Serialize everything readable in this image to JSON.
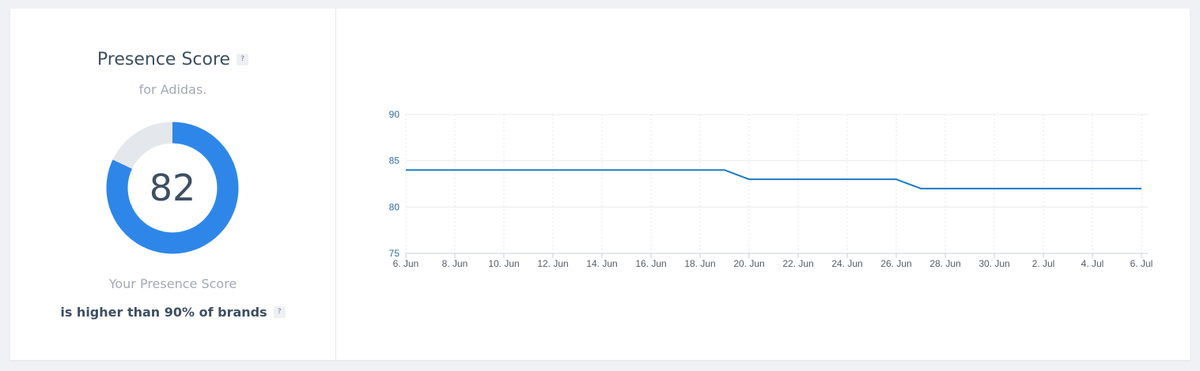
{
  "score_panel": {
    "title": "Presence Score",
    "help_symbol": "?",
    "subtitle": "for Adidas.",
    "score": 82,
    "score_max": 100,
    "rank_label": "Your Presence Score",
    "rank_text": "is higher than 90% of brands"
  },
  "colors": {
    "accent": "#2e87e8",
    "track": "#e4e7eb",
    "line": "#1b7ac4",
    "ytick": "#2e6da4",
    "xtick": "#555d66"
  },
  "chart_data": {
    "type": "line",
    "x": [
      "6. Jun",
      "7. Jun",
      "8. Jun",
      "9. Jun",
      "10. Jun",
      "11. Jun",
      "12. Jun",
      "13. Jun",
      "14. Jun",
      "15. Jun",
      "16. Jun",
      "17. Jun",
      "18. Jun",
      "19. Jun",
      "20. Jun",
      "21. Jun",
      "22. Jun",
      "23. Jun",
      "24. Jun",
      "25. Jun",
      "26. Jun",
      "27. Jun",
      "28. Jun",
      "29. Jun",
      "30. Jun",
      "1. Jul",
      "2. Jul",
      "3. Jul",
      "4. Jul",
      "5. Jul",
      "6. Jul"
    ],
    "series": [
      {
        "values": [
          84,
          84,
          84,
          84,
          84,
          84,
          84,
          84,
          84,
          84,
          84,
          84,
          84,
          84,
          83,
          83,
          83,
          83,
          83,
          83,
          83,
          82,
          82,
          82,
          82,
          82,
          82,
          82,
          82,
          82,
          82
        ]
      }
    ],
    "xticks": [
      "6. Jun",
      "8. Jun",
      "10. Jun",
      "12. Jun",
      "14. Jun",
      "16. Jun",
      "18. Jun",
      "20. Jun",
      "22. Jun",
      "24. Jun",
      "26. Jun",
      "28. Jun",
      "30. Jun",
      "2. Jul",
      "4. Jul",
      "6. Jul"
    ],
    "yticks": [
      75,
      80,
      85,
      90
    ],
    "ylim": [
      75,
      90
    ],
    "title": "",
    "xlabel": "",
    "ylabel": "",
    "grid": true,
    "legend": "none"
  }
}
